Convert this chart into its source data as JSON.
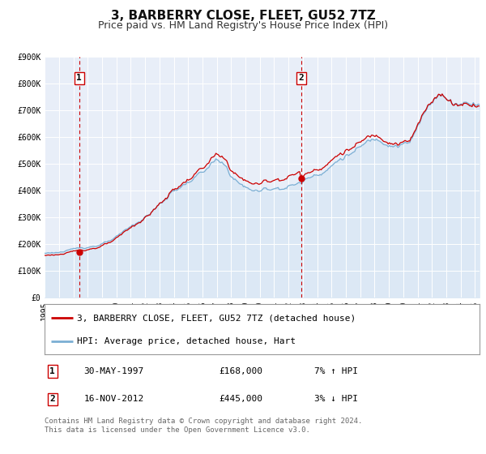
{
  "title": "3, BARBERRY CLOSE, FLEET, GU52 7TZ",
  "subtitle": "Price paid vs. HM Land Registry's House Price Index (HPI)",
  "ylim": [
    0,
    900000
  ],
  "xlim_start": 1995.0,
  "xlim_end": 2025.33,
  "yticks": [
    0,
    100000,
    200000,
    300000,
    400000,
    500000,
    600000,
    700000,
    800000,
    900000
  ],
  "ytick_labels": [
    "£0",
    "£100K",
    "£200K",
    "£300K",
    "£400K",
    "£500K",
    "£600K",
    "£700K",
    "£800K",
    "£900K"
  ],
  "xticks": [
    1995,
    1996,
    1997,
    1998,
    1999,
    2000,
    2001,
    2002,
    2003,
    2004,
    2005,
    2006,
    2007,
    2008,
    2009,
    2010,
    2011,
    2012,
    2013,
    2014,
    2015,
    2016,
    2017,
    2018,
    2019,
    2020,
    2021,
    2022,
    2023,
    2024,
    2025
  ],
  "red_line_color": "#cc0000",
  "blue_line_color": "#7bafd4",
  "blue_fill_color": "#dce8f5",
  "background_color": "#ffffff",
  "plot_bg_color": "#e8eef8",
  "grid_color": "#ffffff",
  "point1_x": 1997.41,
  "point1_y": 168000,
  "point2_x": 2012.88,
  "point2_y": 445000,
  "vline_color": "#cc0000",
  "legend_label_red": "3, BARBERRY CLOSE, FLEET, GU52 7TZ (detached house)",
  "legend_label_blue": "HPI: Average price, detached house, Hart",
  "table_row1": [
    "1",
    "30-MAY-1997",
    "£168,000",
    "7% ↑ HPI"
  ],
  "table_row2": [
    "2",
    "16-NOV-2012",
    "£445,000",
    "3% ↓ HPI"
  ],
  "footer_text": "Contains HM Land Registry data © Crown copyright and database right 2024.\nThis data is licensed under the Open Government Licence v3.0.",
  "title_fontsize": 11,
  "subtitle_fontsize": 9,
  "tick_fontsize": 7,
  "legend_fontsize": 8,
  "table_fontsize": 8,
  "footer_fontsize": 6.5
}
